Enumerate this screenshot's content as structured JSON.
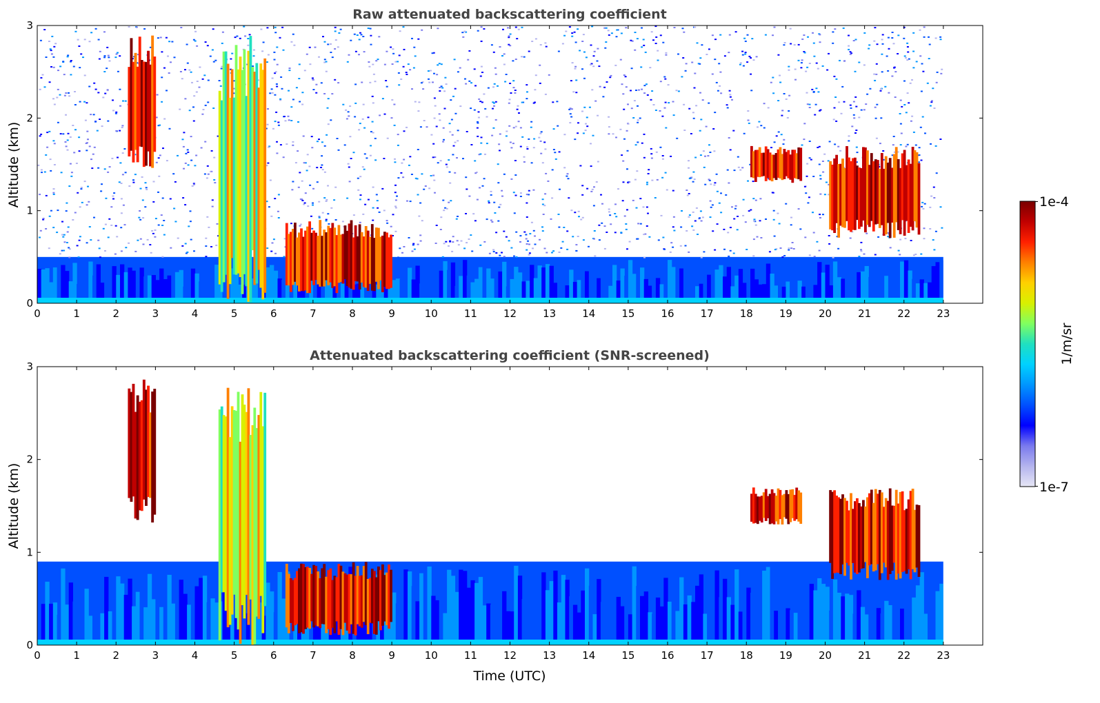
{
  "chart_data": [
    {
      "type": "heatmap",
      "title": "Raw attenuated backscattering coefficient",
      "xlabel": "",
      "ylabel": "Altitude (km)",
      "xlim": [
        0,
        24
      ],
      "ylim": [
        0,
        3
      ],
      "x_ticks": [
        "0",
        "1",
        "2",
        "3",
        "4",
        "5",
        "6",
        "7",
        "8",
        "9",
        "10",
        "11",
        "12",
        "13",
        "14",
        "15",
        "16",
        "17",
        "18",
        "19",
        "20",
        "21",
        "22",
        "23"
      ],
      "y_ticks": [
        "0",
        "1",
        "2",
        "3"
      ],
      "data_end_hour": 23,
      "features": [
        {
          "name": "boundary layer",
          "x": [
            0,
            23
          ],
          "y": [
            0,
            0.5
          ],
          "level": "low"
        },
        {
          "name": "noise above boundary layer",
          "x": [
            0,
            23
          ],
          "y": [
            0.5,
            3
          ],
          "level": "noise"
        },
        {
          "name": "fall streak",
          "x": [
            2.3,
            3.0
          ],
          "y": [
            1.4,
            2.9
          ],
          "level": "high"
        },
        {
          "name": "precipitation column",
          "x": [
            4.6,
            5.8
          ],
          "y": [
            0,
            2.9
          ],
          "level": "medium"
        },
        {
          "name": "low cloud",
          "x": [
            6.3,
            9.0
          ],
          "y": [
            0.1,
            0.9
          ],
          "level": "high"
        },
        {
          "name": "cloud layer",
          "x": [
            18.1,
            19.4
          ],
          "y": [
            1.3,
            1.7
          ],
          "level": "high"
        },
        {
          "name": "cloud layer",
          "x": [
            20.1,
            22.4
          ],
          "y": [
            0.7,
            1.7
          ],
          "level": "high"
        }
      ]
    },
    {
      "type": "heatmap",
      "title": "Attenuated backscattering coefficient (SNR-screened)",
      "xlabel": "Time (UTC)",
      "ylabel": "Altitude (km)",
      "xlim": [
        0,
        24
      ],
      "ylim": [
        0,
        3
      ],
      "x_ticks": [
        "0",
        "1",
        "2",
        "3",
        "4",
        "5",
        "6",
        "7",
        "8",
        "9",
        "10",
        "11",
        "12",
        "13",
        "14",
        "15",
        "16",
        "17",
        "18",
        "19",
        "20",
        "21",
        "22",
        "23"
      ],
      "y_ticks": [
        "0",
        "1",
        "2",
        "3"
      ],
      "data_end_hour": 23,
      "features": [
        {
          "name": "boundary layer",
          "x": [
            0,
            23
          ],
          "y": [
            0,
            0.9
          ],
          "level": "low"
        },
        {
          "name": "fall streak",
          "x": [
            2.3,
            3.0
          ],
          "y": [
            1.3,
            2.9
          ],
          "level": "high"
        },
        {
          "name": "precipitation column",
          "x": [
            4.6,
            5.8
          ],
          "y": [
            0,
            2.9
          ],
          "level": "medium"
        },
        {
          "name": "low cloud",
          "x": [
            6.3,
            9.0
          ],
          "y": [
            0.1,
            0.9
          ],
          "level": "high"
        },
        {
          "name": "cloud layer",
          "x": [
            18.1,
            19.4
          ],
          "y": [
            1.3,
            1.7
          ],
          "level": "high"
        },
        {
          "name": "cloud layer",
          "x": [
            20.1,
            22.4
          ],
          "y": [
            0.7,
            1.7
          ],
          "level": "high"
        }
      ]
    }
  ],
  "colorbar": {
    "label": "1/m/sr",
    "max_label": "1e-4",
    "min_label": "1e-7",
    "scale": "log",
    "range": [
      1e-07,
      0.0001
    ],
    "colormap": [
      "#e6e6f5",
      "#b4b4ee",
      "#7a7aee",
      "#0000ff",
      "#0050ff",
      "#0096ff",
      "#00d2ff",
      "#20e0c0",
      "#80ff60",
      "#d8f000",
      "#ffd000",
      "#ff8000",
      "#ff2000",
      "#c00000",
      "#7a0000"
    ]
  }
}
